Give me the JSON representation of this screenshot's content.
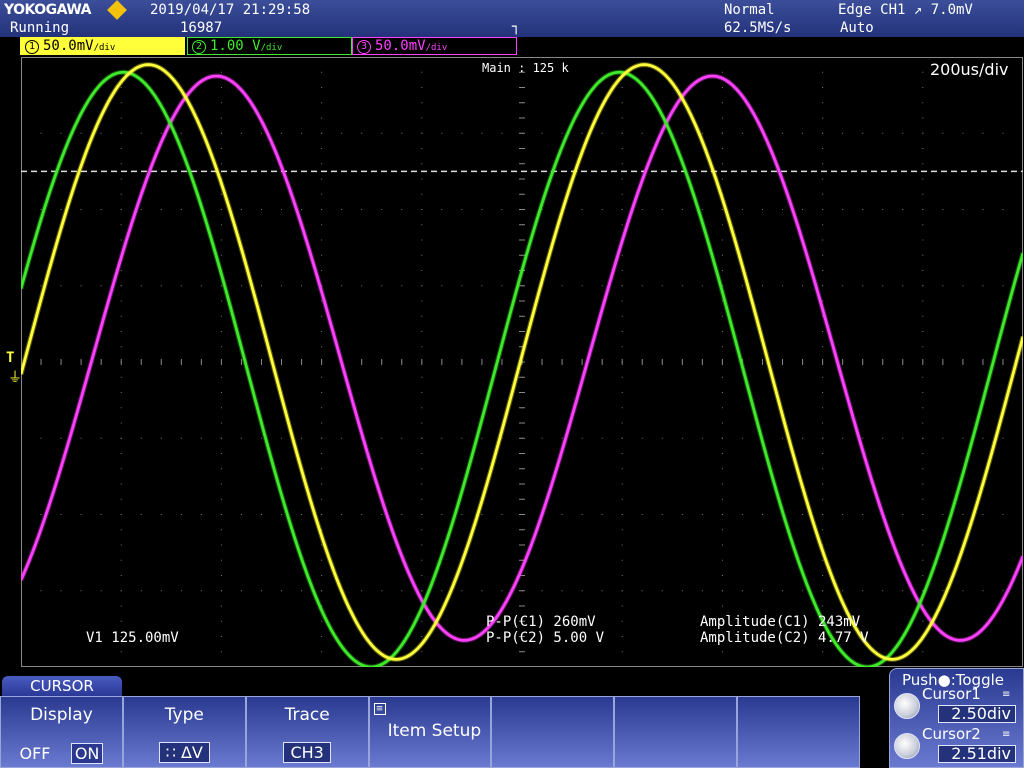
{
  "header": {
    "brand": "YOKOGAWA",
    "run_state": "Running",
    "datetime": "2019/04/17 21:29:58",
    "acq_count": "16987",
    "acq_mode": "Normal",
    "sample_rate": "62.5MS/s",
    "trigger_type": "Edge CH1 ↗ 7.0mV",
    "trigger_mode": "Auto",
    "trigger_pos_icon": "┐"
  },
  "channels": [
    {
      "num": "1",
      "scale": "50.0mV",
      "unit": "/div",
      "color": "#ffff3a"
    },
    {
      "num": "2",
      "scale": "1.00 V",
      "unit": "/div",
      "color": "#3eea2a"
    },
    {
      "num": "3",
      "scale": "50.0mV",
      "unit": "/div",
      "color": "#ff40ff"
    }
  ],
  "display": {
    "record_length": "Main : 125 k",
    "timebase": "200us/div",
    "trigger_marker": "T",
    "ground_icon": "⏚"
  },
  "measurements": {
    "cursor_v1": "V1  125.00mV",
    "pp_c1": "P-P(C1)  260mV",
    "pp_c2": "P-P(C2)  5.00 V",
    "amp_c1": "Amplitude(C1)  243mV",
    "amp_c2": "Amplitude(C2)  4.77 V"
  },
  "menu": {
    "title": "CURSOR",
    "display_label": "Display",
    "display_off": "OFF",
    "display_on": "ON",
    "type_label": "Type",
    "type_value": "∷ ΔV",
    "trace_label": "Trace",
    "trace_value": "CH3",
    "item_setup_label": "Item Setup"
  },
  "cursor_panel": {
    "push_toggle": "Push●:Toggle",
    "cursor1_label": "Cursor1",
    "cursor1_value": "2.50div",
    "cursor2_label": "Cursor2",
    "cursor2_value": "2.51div"
  },
  "waveforms": {
    "grid_divisions_x": 10,
    "grid_divisions_y": 8,
    "period_div": 4.95,
    "ch1": {
      "amplitude_div": 3.9,
      "phase_div": 1.27,
      "offset_div": 0
    },
    "ch2": {
      "amplitude_div": 3.9,
      "phase_div": 1.02,
      "offset_div": -0.1
    },
    "ch3": {
      "amplitude_div": 3.7,
      "phase_div": 1.95,
      "offset_div": 0.05
    },
    "cursor_level_div": 2.5
  }
}
